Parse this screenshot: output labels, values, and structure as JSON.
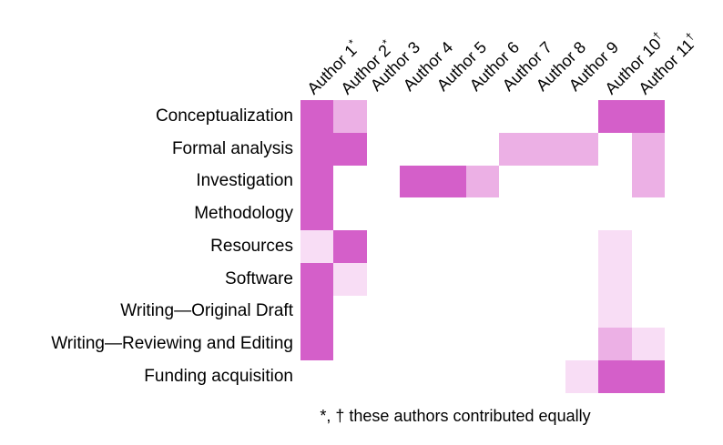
{
  "chart_data": {
    "type": "heatmap",
    "title": "",
    "rows": [
      "Conceptualization",
      "Formal analysis",
      "Investigation",
      "Methodology",
      "Resources",
      "Software",
      "Writing—Original Draft",
      "Writing—Reviewing and Editing",
      "Funding acquisition"
    ],
    "columns": [
      "Author 1*",
      "Author 2*",
      "Author 3",
      "Author 4",
      "Author 5",
      "Author 6",
      "Author 7",
      "Author 8",
      "Author 9",
      "Author 10†",
      "Author 11†"
    ],
    "values": [
      [
        3,
        2,
        0,
        0,
        0,
        0,
        0,
        0,
        0,
        3,
        3
      ],
      [
        3,
        3,
        0,
        0,
        0,
        0,
        2,
        2,
        2,
        0,
        2
      ],
      [
        3,
        0,
        0,
        3,
        3,
        2,
        0,
        0,
        0,
        0,
        2
      ],
      [
        3,
        0,
        0,
        0,
        0,
        0,
        0,
        0,
        0,
        0,
        0
      ],
      [
        1,
        3,
        0,
        0,
        0,
        0,
        0,
        0,
        0,
        1,
        0
      ],
      [
        3,
        1,
        0,
        0,
        0,
        0,
        0,
        0,
        0,
        1,
        0
      ],
      [
        3,
        0,
        0,
        0,
        0,
        0,
        0,
        0,
        0,
        1,
        0
      ],
      [
        3,
        0,
        0,
        0,
        0,
        0,
        0,
        0,
        0,
        2,
        1
      ],
      [
        0,
        0,
        0,
        0,
        0,
        0,
        0,
        0,
        1,
        3,
        3
      ]
    ],
    "level_colors": [
      "#ffffff",
      "#f8ddf5",
      "#ecb0e5",
      "#d45fc9"
    ],
    "level_meaning": [
      "none",
      "low",
      "medium",
      "high"
    ],
    "legend_position": "none",
    "grid": false,
    "footnote": "*, † these authors contributed equally"
  }
}
